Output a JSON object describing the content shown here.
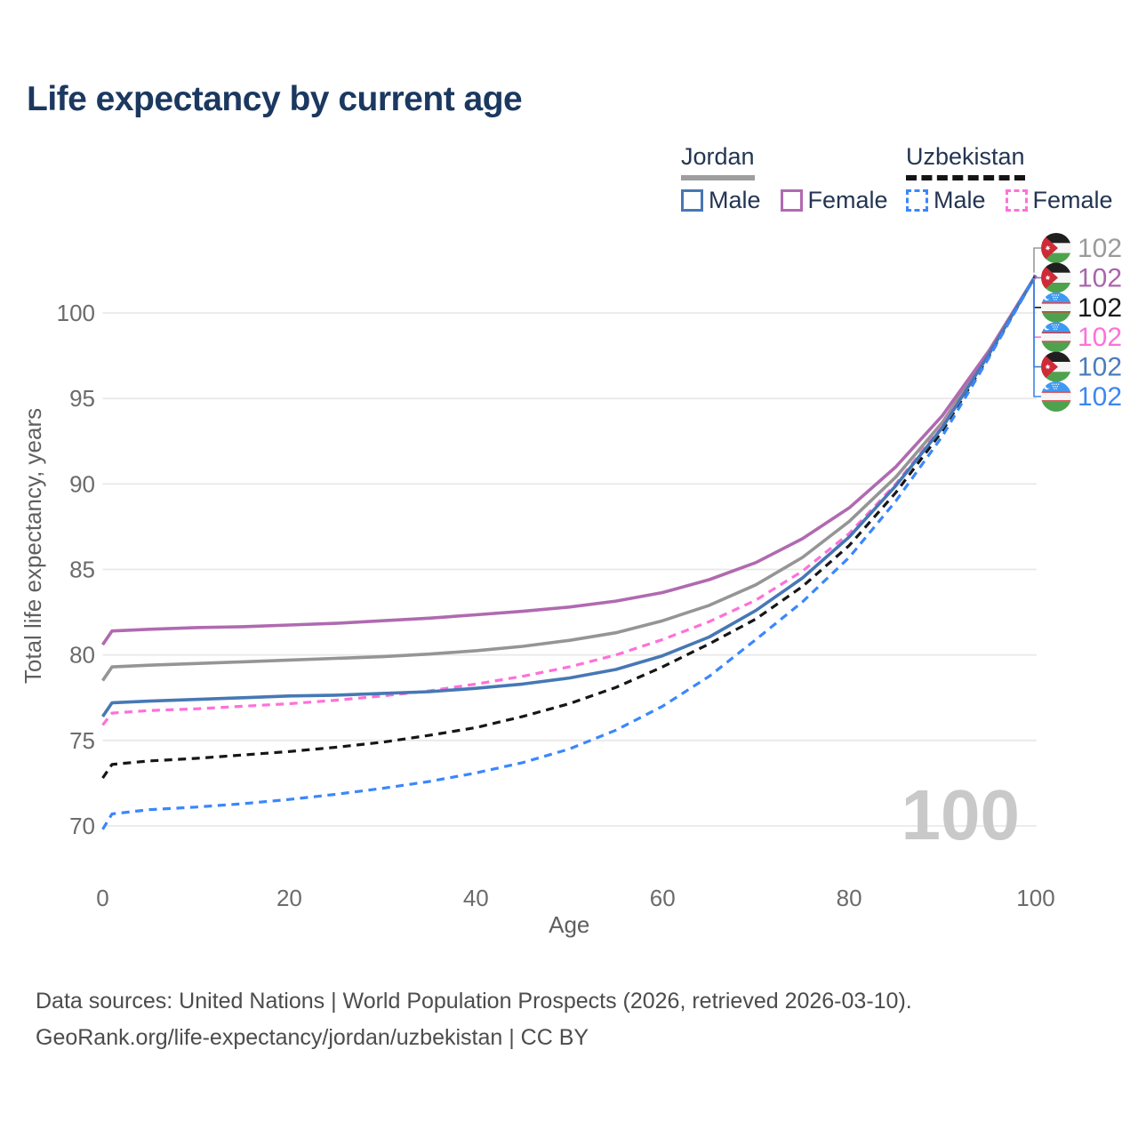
{
  "title": "Life expectancy by current age",
  "watermark_age": "100",
  "footer": {
    "line1": "Data sources: United Nations | World Population Prospects (2026, retrieved 2026-03-10).",
    "line2": "GeoRank.org/life-expectancy/jordan/uzbekistan | CC BY"
  },
  "colors": {
    "title_text": "#1b3860",
    "legend_text": "#243553",
    "axis_text": "#6b6b6b",
    "axis_title_text": "#5f5f5f",
    "gridline": "#e9e9e9",
    "watermark": "#c9c9c9",
    "footer_text": "#4c4c4c",
    "jordan_all": "#959595",
    "jordan_male": "#4678b4",
    "jordan_female": "#b06ab0",
    "uzbekistan_all": "#161616",
    "uzbekistan_male": "#3a87fd",
    "uzbekistan_female": "#ff70d9"
  },
  "legend": {
    "groups": [
      {
        "country": "Jordan",
        "line_style": "solid",
        "underline_color": "#9e9e9e",
        "items": [
          {
            "label": "Male",
            "color": "#4678b4",
            "dashed": false
          },
          {
            "label": "Female",
            "color": "#b06ab0",
            "dashed": false
          }
        ]
      },
      {
        "country": "Uzbekistan",
        "line_style": "dashed",
        "underline_color": "#141414",
        "items": [
          {
            "label": "Male",
            "color": "#3a87fd",
            "dashed": true
          },
          {
            "label": "Female",
            "color": "#ff70d9",
            "dashed": true
          }
        ]
      }
    ]
  },
  "chart_data": {
    "type": "line",
    "title": "Life expectancy by current age",
    "xlabel": "Age",
    "ylabel": "Total life expectancy, years",
    "xlim": [
      0,
      100
    ],
    "ylim": [
      68,
      103
    ],
    "x_ticks": [
      0,
      20,
      40,
      60,
      80,
      100
    ],
    "y_ticks": [
      70,
      75,
      80,
      85,
      90,
      95,
      100
    ],
    "grid": "horizontal",
    "legend_position": "top-right",
    "x": [
      0,
      1,
      5,
      10,
      15,
      20,
      25,
      30,
      35,
      40,
      45,
      50,
      55,
      60,
      65,
      70,
      75,
      80,
      85,
      90,
      95,
      100
    ],
    "series": [
      {
        "name": "Jordan (all)",
        "country": "jordan",
        "style": "solid",
        "color": "#959595",
        "end_label": "102",
        "end_label_color": "#9a9a9a",
        "values": [
          78.5,
          79.3,
          79.4,
          79.5,
          79.6,
          79.7,
          79.8,
          79.9,
          80.05,
          80.25,
          80.5,
          80.85,
          81.3,
          82.0,
          82.9,
          84.1,
          85.7,
          87.8,
          90.4,
          93.6,
          97.7,
          102.2
        ]
      },
      {
        "name": "Jordan Female",
        "country": "jordan",
        "style": "solid",
        "color": "#b06ab0",
        "end_label": "102",
        "end_label_color": "#a965a9",
        "values": [
          80.6,
          81.4,
          81.5,
          81.6,
          81.65,
          81.75,
          81.85,
          82.0,
          82.15,
          82.35,
          82.55,
          82.8,
          83.15,
          83.65,
          84.4,
          85.4,
          86.8,
          88.6,
          91.0,
          94.0,
          97.8,
          102.2
        ]
      },
      {
        "name": "Uzbekistan (all)",
        "country": "uzbekistan",
        "style": "dashed",
        "color": "#161616",
        "end_label": "102",
        "end_label_color": "#1a1a1a",
        "values": [
          72.8,
          73.6,
          73.8,
          73.95,
          74.15,
          74.35,
          74.6,
          74.9,
          75.3,
          75.75,
          76.4,
          77.15,
          78.1,
          79.3,
          80.65,
          82.1,
          84.0,
          86.4,
          89.5,
          93.1,
          97.5,
          102.2
        ]
      },
      {
        "name": "Uzbekistan Female",
        "country": "uzbekistan",
        "style": "dashed",
        "color": "#ff70d9",
        "end_label": "102",
        "end_label_color": "#ff70d9",
        "values": [
          75.9,
          76.6,
          76.75,
          76.85,
          77.0,
          77.15,
          77.35,
          77.6,
          77.9,
          78.3,
          78.75,
          79.3,
          80.0,
          80.9,
          81.95,
          83.2,
          84.9,
          87.1,
          90.0,
          93.4,
          97.6,
          102.2
        ]
      },
      {
        "name": "Jordan Male",
        "country": "jordan",
        "style": "solid",
        "color": "#4678b4",
        "end_label": "102",
        "end_label_color": "#4a7cbc",
        "values": [
          76.4,
          77.2,
          77.3,
          77.4,
          77.5,
          77.6,
          77.65,
          77.75,
          77.85,
          78.05,
          78.3,
          78.65,
          79.15,
          79.95,
          81.05,
          82.6,
          84.5,
          86.9,
          89.9,
          93.3,
          97.6,
          102.2
        ]
      },
      {
        "name": "Uzbekistan Male",
        "country": "uzbekistan",
        "style": "dashed",
        "color": "#3a87fd",
        "end_label": "102",
        "end_label_color": "#3c87f0",
        "values": [
          69.8,
          70.7,
          70.95,
          71.1,
          71.3,
          71.55,
          71.85,
          72.2,
          72.6,
          73.1,
          73.7,
          74.5,
          75.6,
          77.0,
          78.75,
          80.9,
          83.1,
          85.7,
          89.0,
          92.8,
          97.4,
          102.2
        ]
      }
    ],
    "end_label_order": [
      "Jordan (all)",
      "Jordan Female",
      "Uzbekistan (all)",
      "Uzbekistan Female",
      "Jordan Male",
      "Uzbekistan Male"
    ]
  }
}
